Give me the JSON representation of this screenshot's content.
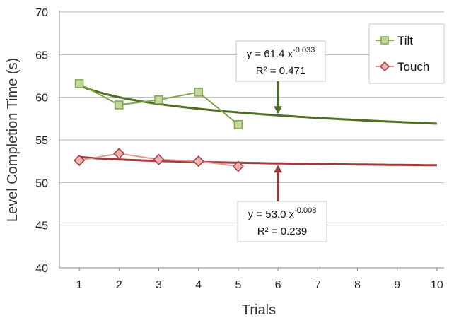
{
  "chart_data": {
    "type": "line",
    "xlabel": "Trials",
    "ylabel": "Level Completion Time (s)",
    "x_ticks": [
      "1",
      "2",
      "3",
      "4",
      "5",
      "6",
      "7",
      "8",
      "9",
      "10"
    ],
    "y_ticks": [
      "40",
      "45",
      "50",
      "55",
      "60",
      "65",
      "70"
    ],
    "xlim": [
      0.5,
      10.5
    ],
    "ylim": [
      40,
      70
    ],
    "grid": "horizontal",
    "legend_placement": "top-right",
    "series": [
      {
        "name": "Tilt",
        "x": [
          1,
          2,
          3,
          4,
          5
        ],
        "values": [
          61.6,
          59.1,
          59.7,
          60.6,
          56.8
        ],
        "color": "#7fa648",
        "marker": "square",
        "marker_fill": "#c3d69b"
      },
      {
        "name": "Touch",
        "x": [
          1,
          2,
          3,
          4,
          5
        ],
        "values": [
          52.6,
          53.4,
          52.7,
          52.5,
          51.9
        ],
        "color": "#e39a96",
        "marker": "diamond",
        "marker_fill": "#e6b3b0"
      }
    ],
    "trendlines": [
      {
        "series": "Tilt",
        "type": "power",
        "a": 61.4,
        "b": -0.033,
        "x_range": [
          1,
          10
        ],
        "color": "#4e6e24",
        "equation_prefix": "y = 61.4 x",
        "equation_exp": "-0.033",
        "r2_text": "R² = 0.471",
        "arrow_at_x": 6,
        "arrow_direction": "down"
      },
      {
        "series": "Touch",
        "type": "power",
        "a": 53.0,
        "b": -0.008,
        "x_range": [
          1,
          10
        ],
        "color": "#9e3a3a",
        "equation_prefix": "y = 53.0 x",
        "equation_exp": "-0.008",
        "r2_text": "R² = 0.239",
        "arrow_at_x": 6,
        "arrow_direction": "up"
      }
    ]
  }
}
